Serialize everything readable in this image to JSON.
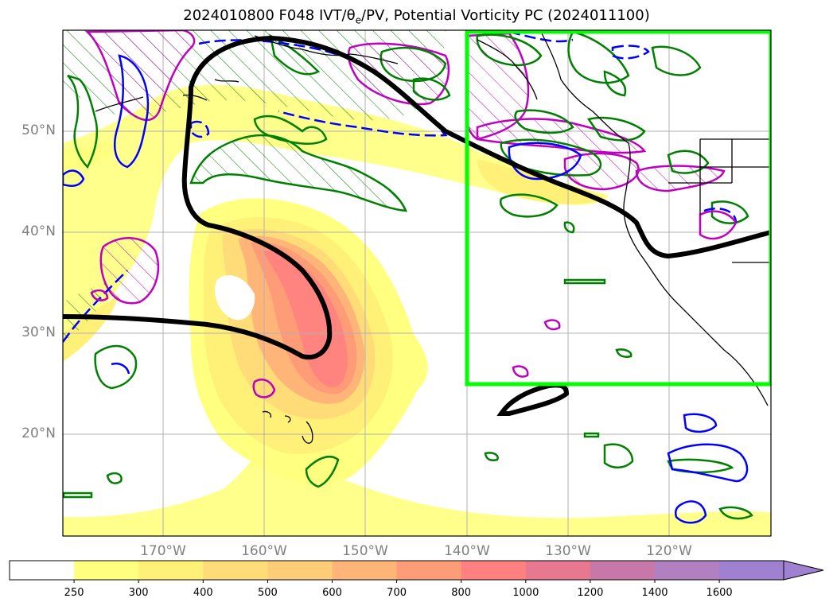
{
  "title": {
    "pre": "2024010800 F048 IVT/",
    "theta": "θ",
    "sub": "e",
    "post": "/PV, Potential Vorticity PC (2024011100)"
  },
  "axes": {
    "lat_labels": [
      "50°N",
      "40°N",
      "30°N",
      "20°N"
    ],
    "lon_labels": [
      "170°W",
      "160°W",
      "150°W",
      "140°W",
      "130°W",
      "120°W"
    ]
  },
  "colorbar": {
    "levels": [
      "250",
      "300",
      "400",
      "500",
      "600",
      "700",
      "800",
      "1000",
      "1200",
      "1400",
      "1600"
    ],
    "colors": [
      "#ffffff",
      "#ffff80",
      "#fff078",
      "#ffdc78",
      "#ffcc78",
      "#ffb478",
      "#ff9c78",
      "#ff8080",
      "#e87890",
      "#c878a8",
      "#b080c0",
      "#a080d0"
    ]
  },
  "legend_colors": {
    "pv_contour": "#000000",
    "box": "#00ff00",
    "green_contour": "#008000",
    "blue_contour": "#0000ff",
    "magenta_contour": "#c000c0"
  }
}
